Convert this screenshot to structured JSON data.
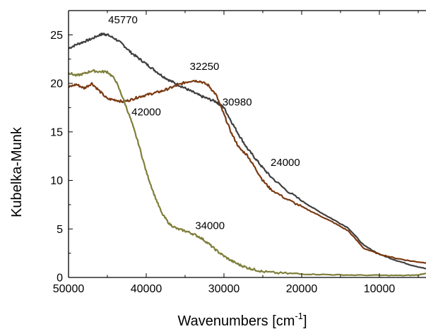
{
  "chart_data": {
    "type": "line",
    "xlabel": "Wavenumbers [cm",
    "xlabel_sup": "-1",
    "xlabel_close": "]",
    "ylabel": "Kubelka-Munk",
    "xlim": [
      50000,
      4000
    ],
    "ylim": [
      0,
      27.5
    ],
    "x_reversed": true,
    "x_ticks": [
      50000,
      40000,
      30000,
      20000,
      10000
    ],
    "y_ticks": [
      0,
      5,
      10,
      15,
      20,
      25
    ],
    "grid": false,
    "series": [
      {
        "color": "#3f3f3f",
        "points": [
          [
            50000,
            23.6
          ],
          [
            49000,
            24.0
          ],
          [
            48000,
            24.3
          ],
          [
            47000,
            24.6
          ],
          [
            46000,
            25.0
          ],
          [
            45500,
            25.1
          ],
          [
            45000,
            25.0
          ],
          [
            44000,
            24.6
          ],
          [
            43000,
            24.0
          ],
          [
            42000,
            23.2
          ],
          [
            41000,
            22.6
          ],
          [
            40000,
            22.0
          ],
          [
            39000,
            21.4
          ],
          [
            38000,
            20.8
          ],
          [
            37000,
            20.3
          ],
          [
            36000,
            19.9
          ],
          [
            35000,
            19.5
          ],
          [
            34000,
            19.1
          ],
          [
            33000,
            18.7
          ],
          [
            32000,
            18.4
          ],
          [
            31000,
            18.1
          ],
          [
            30500,
            17.8
          ],
          [
            30000,
            17.5
          ],
          [
            29000,
            16.0
          ],
          [
            28000,
            14.6
          ],
          [
            27000,
            13.3
          ],
          [
            26000,
            12.3
          ],
          [
            25000,
            11.3
          ],
          [
            24000,
            10.4
          ],
          [
            22000,
            9.0
          ],
          [
            20000,
            7.9
          ],
          [
            18000,
            6.9
          ],
          [
            16000,
            6.0
          ],
          [
            14000,
            5.1
          ],
          [
            12000,
            3.3
          ],
          [
            10000,
            2.4
          ],
          [
            8000,
            1.8
          ],
          [
            6000,
            1.3
          ],
          [
            4000,
            0.9
          ]
        ]
      },
      {
        "color": "#7b3a12",
        "points": [
          [
            50000,
            19.6
          ],
          [
            49000,
            19.9
          ],
          [
            48000,
            19.5
          ],
          [
            47000,
            20.0
          ],
          [
            46000,
            19.2
          ],
          [
            45000,
            18.4
          ],
          [
            44000,
            18.3
          ],
          [
            43000,
            18.1
          ],
          [
            42000,
            18.3
          ],
          [
            41000,
            18.6
          ],
          [
            40000,
            18.8
          ],
          [
            39000,
            19.0
          ],
          [
            38000,
            19.2
          ],
          [
            37000,
            19.5
          ],
          [
            36000,
            19.8
          ],
          [
            35000,
            20.1
          ],
          [
            34000,
            20.3
          ],
          [
            33000,
            20.2
          ],
          [
            32000,
            19.8
          ],
          [
            31000,
            18.8
          ],
          [
            30000,
            16.8
          ],
          [
            29000,
            14.8
          ],
          [
            28000,
            13.3
          ],
          [
            27000,
            12.6
          ],
          [
            26000,
            11.3
          ],
          [
            25000,
            10.0
          ],
          [
            24000,
            9.1
          ],
          [
            22000,
            8.1
          ],
          [
            20000,
            7.3
          ],
          [
            18000,
            6.5
          ],
          [
            16000,
            5.7
          ],
          [
            14000,
            4.8
          ],
          [
            12000,
            3.0
          ],
          [
            10000,
            2.4
          ],
          [
            8000,
            2.0
          ],
          [
            6000,
            1.7
          ],
          [
            4000,
            1.5
          ]
        ]
      },
      {
        "color": "#7f7f3c",
        "points": [
          [
            50000,
            21.1
          ],
          [
            49000,
            20.8
          ],
          [
            48000,
            21.0
          ],
          [
            47000,
            21.3
          ],
          [
            46000,
            21.2
          ],
          [
            45000,
            21.2
          ],
          [
            44000,
            20.4
          ],
          [
            43000,
            18.5
          ],
          [
            42000,
            16.3
          ],
          [
            41000,
            13.8
          ],
          [
            40000,
            10.9
          ],
          [
            39000,
            8.6
          ],
          [
            38000,
            6.6
          ],
          [
            37000,
            5.5
          ],
          [
            36000,
            5.0
          ],
          [
            35000,
            4.8
          ],
          [
            34000,
            4.5
          ],
          [
            33000,
            4.1
          ],
          [
            32000,
            3.5
          ],
          [
            31000,
            2.8
          ],
          [
            30000,
            2.2
          ],
          [
            29000,
            1.7
          ],
          [
            28000,
            1.3
          ],
          [
            27000,
            1.0
          ],
          [
            26000,
            0.8
          ],
          [
            25000,
            0.6
          ],
          [
            23000,
            0.45
          ],
          [
            20000,
            0.35
          ],
          [
            17000,
            0.3
          ],
          [
            14000,
            0.25
          ],
          [
            10000,
            0.22
          ],
          [
            7000,
            0.2
          ],
          [
            5000,
            0.25
          ],
          [
            4000,
            0.45
          ]
        ]
      }
    ],
    "annotations": [
      {
        "text": "45770",
        "x": 43000,
        "y": 26.2
      },
      {
        "text": "32250",
        "x": 32500,
        "y": 21.4
      },
      {
        "text": "30980",
        "x": 28300,
        "y": 17.7
      },
      {
        "text": "42000",
        "x": 40000,
        "y": 16.7
      },
      {
        "text": "24000",
        "x": 22100,
        "y": 11.5
      },
      {
        "text": "34000",
        "x": 31800,
        "y": 5.0
      }
    ]
  }
}
